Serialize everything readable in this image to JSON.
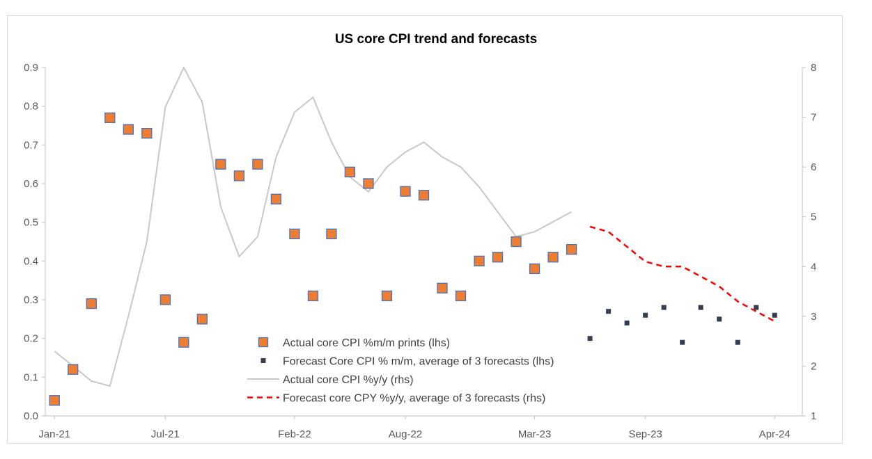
{
  "chart_data": {
    "type": "combo",
    "title": "US core CPI trend and forecasts",
    "x_tick_labels": [
      "Jan-21",
      "Jul-21",
      "Feb-22",
      "Aug-22",
      "Mar-23",
      "Sep-23",
      "Apr-24"
    ],
    "x_tick_index": [
      0,
      6,
      13,
      19,
      26,
      32,
      39
    ],
    "n_points": 41,
    "y_left": {
      "min": 0.0,
      "max": 0.9,
      "ticks": [
        "0.0",
        "0.1",
        "0.2",
        "0.3",
        "0.4",
        "0.5",
        "0.6",
        "0.7",
        "0.8",
        "0.9"
      ]
    },
    "y_right": {
      "min": 1,
      "max": 8,
      "ticks": [
        "1",
        "2",
        "3",
        "4",
        "5",
        "6",
        "7",
        "8"
      ]
    },
    "series": [
      {
        "name": "Actual core CPI %m/m prints (lhs)",
        "type": "scatter-square",
        "axis": "left",
        "color": "#ed7d31",
        "border": "#4472c4",
        "start_index": 0,
        "values": [
          0.04,
          0.12,
          0.29,
          0.77,
          0.74,
          0.73,
          0.3,
          0.19,
          0.25,
          0.65,
          0.62,
          0.65,
          0.56,
          0.47,
          0.31,
          0.47,
          0.63,
          0.6,
          0.31,
          0.58,
          0.57,
          0.33,
          0.31,
          0.4,
          0.41,
          0.45,
          0.38,
          0.41,
          0.43
        ]
      },
      {
        "name": "Forecast Core CPI % m/m, average of 3 forecasts (lhs)",
        "type": "scatter-square",
        "axis": "left",
        "color": "#333f50",
        "start_index": 29,
        "values": [
          0.2,
          0.27,
          0.24,
          0.26,
          0.28,
          0.19,
          0.28,
          0.25,
          0.19,
          0.28,
          0.26
        ]
      },
      {
        "name": "Actual core CPI %y/y (rhs)",
        "type": "line",
        "axis": "right",
        "color": "#c8c8c8",
        "start_index": 0,
        "values": [
          2.3,
          2.0,
          1.7,
          1.6,
          3.0,
          4.5,
          7.2,
          8.0,
          7.3,
          5.2,
          4.2,
          4.6,
          6.2,
          7.1,
          7.4,
          6.5,
          5.8,
          5.5,
          6.0,
          6.3,
          6.5,
          6.2,
          6.0,
          5.6,
          5.1,
          4.6,
          4.7,
          4.9,
          5.1
        ]
      },
      {
        "name": "Forecast core CPY %y/y, average of 3 forecasts (rhs)",
        "type": "line-dashed",
        "axis": "right",
        "color": "#ff0000",
        "start_index": 29,
        "values": [
          4.8,
          4.7,
          4.4,
          4.1,
          4.0,
          4.0,
          3.8,
          3.6,
          3.3,
          3.1,
          2.9
        ]
      }
    ],
    "legend_position": "center-bottom"
  }
}
